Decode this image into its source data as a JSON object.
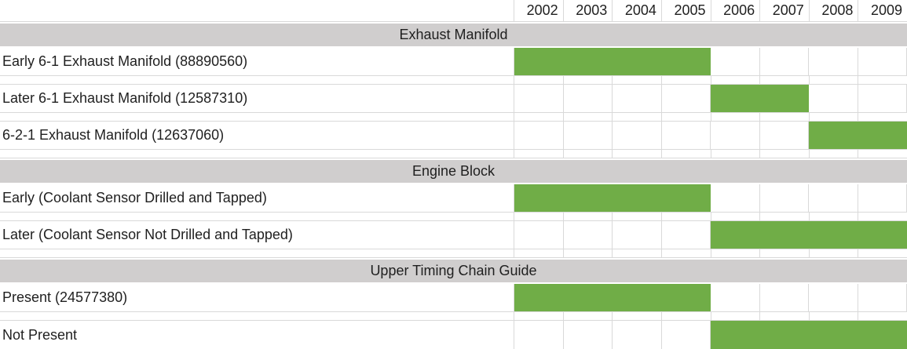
{
  "chart_data": {
    "type": "table",
    "subtype": "gantt-availability",
    "x_categories": [
      "2002",
      "2003",
      "2004",
      "2005",
      "2006",
      "2007",
      "2008",
      "2009"
    ],
    "sections": [
      {
        "title": "Exhaust Manifold",
        "rows": [
          {
            "label": "Early 6-1 Exhaust Manifold (88890560)",
            "start_year": "2002",
            "end_year": "2005"
          },
          {
            "label": "Later 6-1 Exhaust Manifold (12587310)",
            "start_year": "2006",
            "end_year": "2007"
          },
          {
            "label": "6-2-1 Exhaust Manifold (12637060)",
            "start_year": "2008",
            "end_year": "2009"
          }
        ]
      },
      {
        "title": "Engine Block",
        "rows": [
          {
            "label": "Early (Coolant Sensor Drilled and Tapped)",
            "start_year": "2002",
            "end_year": "2005"
          },
          {
            "label": "Later (Coolant Sensor Not Drilled and Tapped)",
            "start_year": "2006",
            "end_year": "2009"
          }
        ]
      },
      {
        "title": "Upper Timing Chain Guide",
        "rows": [
          {
            "label": "Present (24577380)",
            "start_year": "2002",
            "end_year": "2005"
          },
          {
            "label": "Not Present",
            "start_year": "2006",
            "end_year": "2009"
          }
        ]
      }
    ],
    "grid": true,
    "legend_position": "none",
    "colors": {
      "bar_fill": "#70AD47",
      "section_header_bg": "#D0CECE",
      "gridline": "#D9D9D9",
      "text": "#1F1F1F",
      "background": "#FFFFFF"
    }
  }
}
